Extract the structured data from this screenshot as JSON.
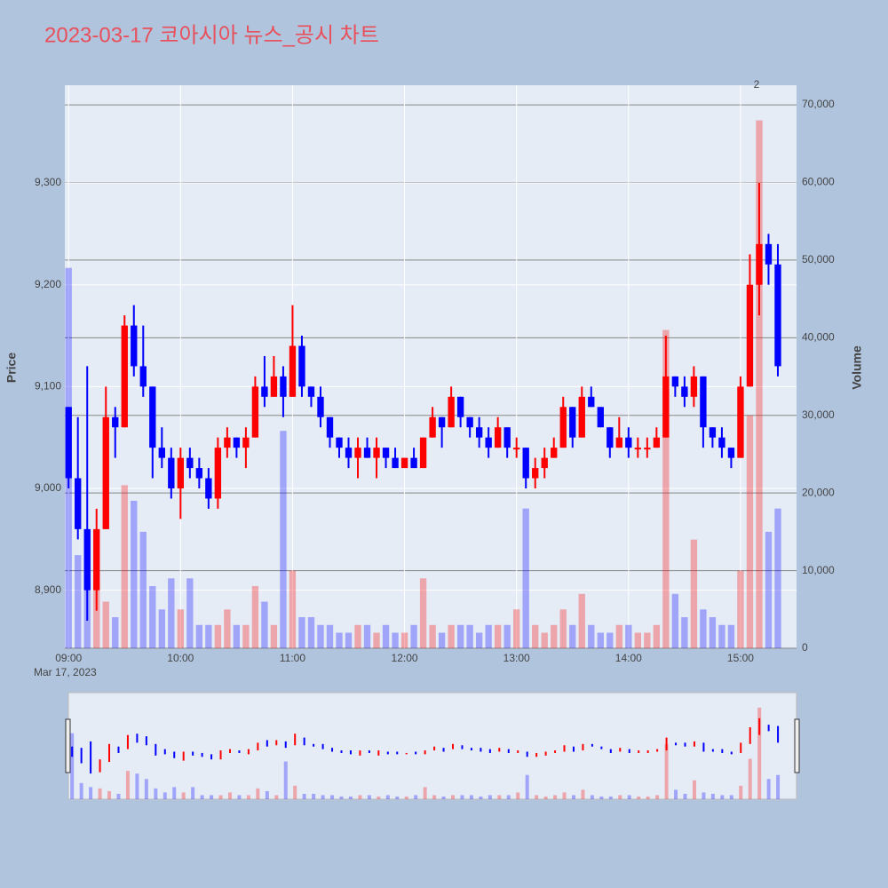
{
  "chart_data": {
    "type": "candlestick",
    "title": "2023-03-17 코아시아 뉴스_공시 차트",
    "ylabel": "Price",
    "y2label": "Volume",
    "x_date_label": "Mar 17, 2023",
    "annotation": "2",
    "increasing_color": "#ff0000",
    "decreasing_color": "#0000ff",
    "x": [
      "09:00",
      "09:05",
      "09:10",
      "09:15",
      "09:20",
      "09:25",
      "09:30",
      "09:35",
      "09:40",
      "09:45",
      "09:50",
      "09:55",
      "10:00",
      "10:05",
      "10:10",
      "10:15",
      "10:20",
      "10:25",
      "10:30",
      "10:35",
      "10:40",
      "10:45",
      "10:50",
      "10:55",
      "11:00",
      "11:05",
      "11:10",
      "11:15",
      "11:20",
      "11:25",
      "11:30",
      "11:35",
      "11:40",
      "11:45",
      "11:50",
      "11:55",
      "12:00",
      "12:05",
      "12:10",
      "12:15",
      "12:20",
      "12:25",
      "12:30",
      "12:35",
      "12:40",
      "12:45",
      "12:50",
      "12:55",
      "13:00",
      "13:05",
      "13:10",
      "13:15",
      "13:20",
      "13:25",
      "13:30",
      "13:35",
      "13:40",
      "13:45",
      "13:50",
      "13:55",
      "14:00",
      "14:05",
      "14:10",
      "14:15",
      "14:20",
      "14:25",
      "14:30",
      "14:35",
      "14:40",
      "14:45",
      "14:50",
      "14:55",
      "15:00",
      "15:05",
      "15:10",
      "15:15",
      "15:20"
    ],
    "open": [
      9080,
      9010,
      8960,
      8900,
      8960,
      9070,
      9060,
      9160,
      9120,
      9100,
      9040,
      9030,
      9000,
      9030,
      9020,
      9010,
      8990,
      9040,
      9050,
      9040,
      9050,
      9100,
      9090,
      9110,
      9090,
      9140,
      9100,
      9090,
      9070,
      9050,
      9040,
      9030,
      9040,
      9030,
      9040,
      9030,
      9020,
      9030,
      9020,
      9050,
      9070,
      9060,
      9090,
      9070,
      9060,
      9050,
      9040,
      9060,
      9040,
      9040,
      9010,
      9020,
      9030,
      9040,
      9080,
      9050,
      9090,
      9080,
      9060,
      9040,
      9050,
      9040,
      9040,
      9040,
      9050,
      9110,
      9100,
      9090,
      9110,
      9060,
      9050,
      9040,
      9030,
      9100,
      9200,
      9240,
      9220
    ],
    "high": [
      9080,
      9070,
      9120,
      8980,
      9100,
      9080,
      9170,
      9180,
      9160,
      9100,
      9060,
      9040,
      9040,
      9040,
      9030,
      9020,
      9050,
      9060,
      9050,
      9060,
      9110,
      9130,
      9130,
      9120,
      9180,
      9150,
      9100,
      9100,
      9070,
      9050,
      9050,
      9050,
      9050,
      9050,
      9040,
      9040,
      9030,
      9040,
      9050,
      9080,
      9070,
      9100,
      9090,
      9070,
      9070,
      9060,
      9070,
      9060,
      9050,
      9040,
      9030,
      9040,
      9050,
      9090,
      9080,
      9100,
      9100,
      9080,
      9060,
      9070,
      9060,
      9050,
      9050,
      9060,
      9150,
      9110,
      9110,
      9120,
      9110,
      9060,
      9060,
      9040,
      9110,
      9230,
      9300,
      9250,
      9240
    ],
    "low": [
      9000,
      8950,
      8870,
      8880,
      8960,
      9030,
      9060,
      9110,
      9090,
      9010,
      9020,
      8990,
      8970,
      9010,
      9000,
      8980,
      8980,
      9030,
      9030,
      9020,
      9050,
      9080,
      9090,
      9070,
      9090,
      9090,
      9080,
      9060,
      9040,
      9030,
      9020,
      9010,
      9030,
      9010,
      9020,
      9020,
      9020,
      9020,
      9020,
      9050,
      9040,
      9060,
      9060,
      9050,
      9040,
      9030,
      9040,
      9030,
      9030,
      9000,
      9000,
      9010,
      9030,
      9040,
      9040,
      9050,
      9080,
      9060,
      9030,
      9040,
      9030,
      9030,
      9030,
      9040,
      9050,
      9090,
      9080,
      9080,
      9040,
      9040,
      9030,
      9020,
      9030,
      9100,
      9170,
      9200,
      9110
    ],
    "close": [
      9010,
      8960,
      8900,
      8960,
      9070,
      9060,
      9160,
      9120,
      9100,
      9040,
      9030,
      9000,
      9030,
      9020,
      9010,
      8990,
      9040,
      9050,
      9040,
      9050,
      9100,
      9090,
      9110,
      9090,
      9140,
      9100,
      9090,
      9070,
      9050,
      9040,
      9030,
      9040,
      9030,
      9040,
      9030,
      9020,
      9030,
      9020,
      9050,
      9070,
      9060,
      9090,
      9070,
      9060,
      9050,
      9040,
      9060,
      9040,
      9040,
      9010,
      9020,
      9030,
      9040,
      9080,
      9050,
      9090,
      9080,
      9060,
      9040,
      9050,
      9040,
      9040,
      9040,
      9050,
      9110,
      9100,
      9090,
      9110,
      9060,
      9050,
      9040,
      9030,
      9100,
      9200,
      9240,
      9220,
      9120
    ],
    "volume": [
      49000,
      12000,
      9000,
      8000,
      6000,
      4000,
      21000,
      19000,
      15000,
      8000,
      5000,
      9000,
      5000,
      9000,
      3000,
      3000,
      3000,
      5000,
      3000,
      3000,
      8000,
      6000,
      3000,
      28000,
      10000,
      4000,
      4000,
      3000,
      3000,
      2000,
      2000,
      3000,
      3000,
      2000,
      3000,
      2000,
      2000,
      3000,
      9000,
      3000,
      2000,
      3000,
      3000,
      3000,
      2000,
      3000,
      3000,
      3000,
      5000,
      18000,
      3000,
      2000,
      3000,
      5000,
      3000,
      7000,
      3000,
      2000,
      2000,
      3000,
      3000,
      2000,
      2000,
      3000,
      41000,
      7000,
      4000,
      14000,
      5000,
      4000,
      3000,
      3000,
      10000,
      30000,
      68000,
      15000,
      18000
    ],
    "xlim": [
      "08:58",
      "15:30"
    ],
    "xticks": [
      "09:00",
      "10:00",
      "11:00",
      "12:00",
      "13:00",
      "14:00",
      "15:00"
    ],
    "ylim": [
      8843,
      9396
    ],
    "yticks": [
      {
        "value": 8900,
        "label": "8,900"
      },
      {
        "value": 9000,
        "label": "9,000"
      },
      {
        "value": 9100,
        "label": "9,100"
      },
      {
        "value": 9200,
        "label": "9,200"
      },
      {
        "value": 9300,
        "label": "9,300"
      }
    ],
    "y2lim": [
      0,
      72525
    ],
    "y2ticks": [
      0,
      {
        "value": 10000,
        "label": "10,000"
      },
      {
        "value": 20000,
        "label": "20,000"
      },
      {
        "value": 30000,
        "label": "30,000"
      },
      {
        "value": 40000,
        "label": "40,000"
      },
      {
        "value": 50000,
        "label": "50,000"
      },
      {
        "value": 60000,
        "label": "60,000"
      },
      {
        "value": 70000,
        "label": "70,000"
      }
    ],
    "grid": true
  }
}
